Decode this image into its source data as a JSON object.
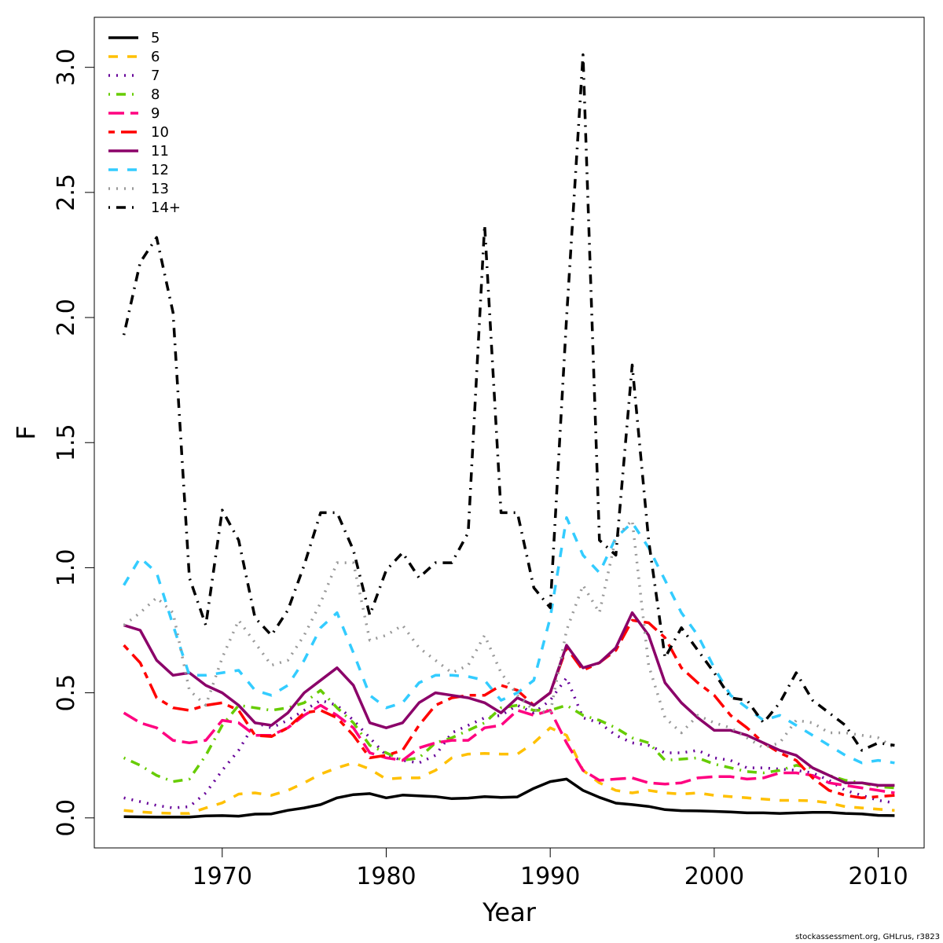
{
  "footer": "stockassessment.org, GHLrus, r3823",
  "chart_data": {
    "type": "line",
    "title": "",
    "xlabel": "Year",
    "ylabel": "F",
    "xlim": [
      1962.2,
      2012.8
    ],
    "ylim": [
      -0.12,
      3.2
    ],
    "xticks": [
      1970,
      1980,
      1990,
      2000,
      2010
    ],
    "yticks": [
      0.0,
      0.5,
      1.0,
      1.5,
      2.0,
      2.5,
      3.0
    ],
    "ytick_labels": [
      "0.0",
      "0.5",
      "1.0",
      "1.5",
      "2.0",
      "2.5",
      "3.0"
    ],
    "grid": false,
    "legend_position": "top-left",
    "x": [
      1964,
      1965,
      1966,
      1967,
      1968,
      1969,
      1970,
      1971,
      1972,
      1973,
      1974,
      1975,
      1976,
      1977,
      1978,
      1979,
      1980,
      1981,
      1982,
      1983,
      1984,
      1985,
      1986,
      1987,
      1988,
      1989,
      1990,
      1991,
      1992,
      1993,
      1994,
      1995,
      1996,
      1997,
      1998,
      1999,
      2000,
      2001,
      2002,
      2003,
      2004,
      2005,
      2006,
      2007,
      2008,
      2009,
      2010,
      2011
    ],
    "series": [
      {
        "name": "5",
        "color": "#000000",
        "dash": "solid",
        "values": [
          0.005,
          0.004,
          0.003,
          0.003,
          0.003,
          0.008,
          0.009,
          0.007,
          0.015,
          0.016,
          0.03,
          0.04,
          0.053,
          0.08,
          0.093,
          0.097,
          0.08,
          0.091,
          0.088,
          0.085,
          0.077,
          0.079,
          0.085,
          0.082,
          0.084,
          0.118,
          0.145,
          0.155,
          0.11,
          0.082,
          0.059,
          0.053,
          0.046,
          0.033,
          0.029,
          0.028,
          0.026,
          0.024,
          0.02,
          0.02,
          0.018,
          0.02,
          0.022,
          0.022,
          0.018,
          0.016,
          0.01,
          0.009
        ]
      },
      {
        "name": "6",
        "color": "#ffc000",
        "dash": "dashed",
        "values": [
          0.03,
          0.024,
          0.02,
          0.018,
          0.018,
          0.04,
          0.06,
          0.095,
          0.1,
          0.09,
          0.11,
          0.14,
          0.175,
          0.2,
          0.22,
          0.195,
          0.155,
          0.16,
          0.16,
          0.19,
          0.24,
          0.255,
          0.258,
          0.255,
          0.255,
          0.3,
          0.36,
          0.33,
          0.19,
          0.14,
          0.11,
          0.1,
          0.11,
          0.1,
          0.095,
          0.1,
          0.09,
          0.085,
          0.08,
          0.075,
          0.07,
          0.07,
          0.068,
          0.06,
          0.045,
          0.04,
          0.035,
          0.03
        ]
      },
      {
        "name": "7",
        "color": "#660099",
        "dash": "dotted",
        "values": [
          0.08,
          0.065,
          0.05,
          0.04,
          0.045,
          0.1,
          0.19,
          0.27,
          0.38,
          0.36,
          0.39,
          0.43,
          0.47,
          0.45,
          0.39,
          0.32,
          0.25,
          0.23,
          0.22,
          0.25,
          0.34,
          0.37,
          0.4,
          0.41,
          0.45,
          0.42,
          0.47,
          0.56,
          0.4,
          0.38,
          0.33,
          0.3,
          0.29,
          0.26,
          0.26,
          0.27,
          0.24,
          0.23,
          0.2,
          0.2,
          0.195,
          0.19,
          0.18,
          0.15,
          0.11,
          0.09,
          0.07,
          0.06
        ]
      },
      {
        "name": "8",
        "color": "#66cc00",
        "dash": "dashdot",
        "values": [
          0.24,
          0.21,
          0.17,
          0.145,
          0.155,
          0.25,
          0.37,
          0.45,
          0.44,
          0.43,
          0.44,
          0.46,
          0.51,
          0.44,
          0.38,
          0.29,
          0.26,
          0.23,
          0.24,
          0.3,
          0.32,
          0.35,
          0.38,
          0.44,
          0.45,
          0.43,
          0.43,
          0.45,
          0.41,
          0.39,
          0.36,
          0.32,
          0.3,
          0.23,
          0.235,
          0.24,
          0.215,
          0.2,
          0.185,
          0.18,
          0.19,
          0.21,
          0.2,
          0.17,
          0.15,
          0.14,
          0.125,
          0.12
        ]
      },
      {
        "name": "9",
        "color": "#ff0080",
        "dash": "longdash",
        "values": [
          0.42,
          0.38,
          0.36,
          0.31,
          0.3,
          0.31,
          0.39,
          0.38,
          0.33,
          0.33,
          0.36,
          0.41,
          0.45,
          0.41,
          0.36,
          0.26,
          0.24,
          0.23,
          0.28,
          0.3,
          0.31,
          0.31,
          0.36,
          0.37,
          0.43,
          0.41,
          0.43,
          0.3,
          0.19,
          0.15,
          0.155,
          0.16,
          0.14,
          0.135,
          0.14,
          0.16,
          0.165,
          0.165,
          0.155,
          0.16,
          0.18,
          0.18,
          0.17,
          0.14,
          0.13,
          0.12,
          0.11,
          0.1
        ]
      },
      {
        "name": "10",
        "color": "#ff0000",
        "dash": "twodash",
        "values": [
          0.69,
          0.62,
          0.48,
          0.44,
          0.43,
          0.45,
          0.46,
          0.43,
          0.33,
          0.325,
          0.36,
          0.42,
          0.43,
          0.4,
          0.33,
          0.24,
          0.25,
          0.27,
          0.37,
          0.45,
          0.48,
          0.49,
          0.49,
          0.53,
          0.51,
          0.45,
          0.5,
          0.68,
          0.59,
          0.62,
          0.67,
          0.79,
          0.78,
          0.72,
          0.6,
          0.54,
          0.49,
          0.41,
          0.36,
          0.3,
          0.26,
          0.23,
          0.16,
          0.11,
          0.09,
          0.08,
          0.085,
          0.09
        ]
      },
      {
        "name": "11",
        "color": "#8b0069",
        "dash": "solid",
        "values": [
          0.77,
          0.75,
          0.63,
          0.57,
          0.58,
          0.53,
          0.5,
          0.45,
          0.38,
          0.37,
          0.42,
          0.5,
          0.55,
          0.6,
          0.53,
          0.38,
          0.36,
          0.38,
          0.46,
          0.5,
          0.49,
          0.48,
          0.46,
          0.42,
          0.48,
          0.45,
          0.5,
          0.69,
          0.6,
          0.62,
          0.68,
          0.82,
          0.73,
          0.54,
          0.46,
          0.4,
          0.35,
          0.35,
          0.33,
          0.3,
          0.27,
          0.25,
          0.2,
          0.17,
          0.14,
          0.14,
          0.13,
          0.13
        ]
      },
      {
        "name": "12",
        "color": "#33ccff",
        "dash": "dashed",
        "values": [
          0.93,
          1.04,
          0.98,
          0.77,
          0.57,
          0.57,
          0.58,
          0.59,
          0.51,
          0.49,
          0.53,
          0.63,
          0.76,
          0.82,
          0.66,
          0.49,
          0.44,
          0.46,
          0.54,
          0.57,
          0.57,
          0.565,
          0.55,
          0.47,
          0.5,
          0.55,
          0.8,
          1.2,
          1.05,
          0.98,
          1.12,
          1.18,
          1.08,
          0.95,
          0.82,
          0.73,
          0.6,
          0.49,
          0.44,
          0.39,
          0.41,
          0.37,
          0.33,
          0.29,
          0.25,
          0.22,
          0.23,
          0.22
        ]
      },
      {
        "name": "13",
        "color": "#999999",
        "dash": "dotted",
        "values": [
          0.77,
          0.82,
          0.88,
          0.82,
          0.51,
          0.45,
          0.64,
          0.79,
          0.7,
          0.61,
          0.63,
          0.73,
          0.86,
          1.02,
          1.02,
          0.71,
          0.73,
          0.77,
          0.68,
          0.63,
          0.58,
          0.61,
          0.73,
          0.58,
          0.49,
          0.43,
          0.42,
          0.75,
          0.93,
          0.82,
          1.12,
          1.19,
          0.61,
          0.4,
          0.34,
          0.41,
          0.38,
          0.36,
          0.32,
          0.28,
          0.3,
          0.39,
          0.38,
          0.34,
          0.34,
          0.33,
          0.32,
          0.28
        ]
      },
      {
        "name": "14+",
        "color": "#000000",
        "dash": "dashdot",
        "values": [
          1.93,
          2.22,
          2.32,
          2.02,
          0.96,
          0.77,
          1.23,
          1.11,
          0.8,
          0.73,
          0.83,
          1.01,
          1.22,
          1.22,
          1.07,
          0.81,
          0.99,
          1.06,
          0.96,
          1.02,
          1.02,
          1.14,
          2.37,
          1.22,
          1.22,
          0.92,
          0.84,
          2.0,
          3.05,
          1.11,
          1.05,
          1.81,
          1.11,
          0.64,
          0.76,
          0.67,
          0.58,
          0.48,
          0.47,
          0.38,
          0.46,
          0.58,
          0.47,
          0.42,
          0.37,
          0.27,
          0.3,
          0.29
        ]
      }
    ]
  }
}
